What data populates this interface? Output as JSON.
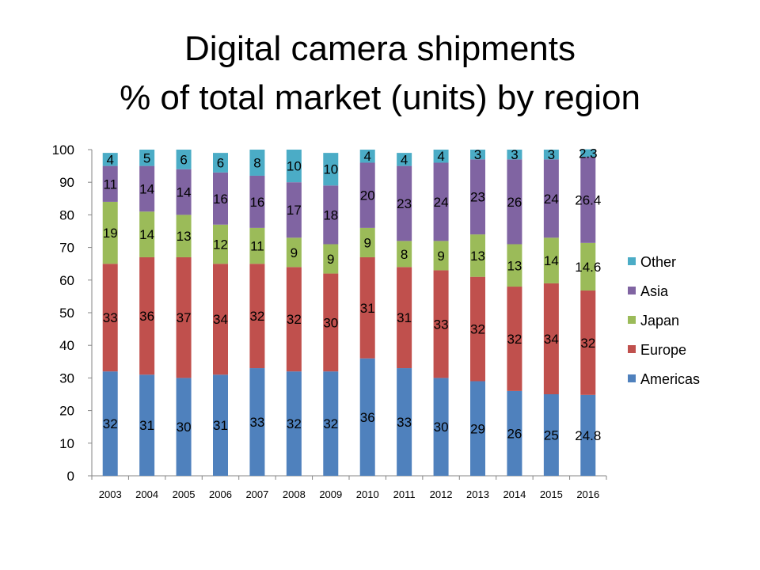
{
  "title": {
    "line1": "Digital camera shipments",
    "line2": "% of total market (units) by region"
  },
  "chart_data": {
    "type": "bar",
    "stacked": true,
    "categories": [
      "2003",
      "2004",
      "2005",
      "2006",
      "2007",
      "2008",
      "2009",
      "2010",
      "2011",
      "2012",
      "2013",
      "2014",
      "2015",
      "2016"
    ],
    "ylim": [
      0,
      100
    ],
    "yticks": [
      "0",
      "10",
      "20",
      "30",
      "40",
      "50",
      "60",
      "70",
      "80",
      "90",
      "100"
    ],
    "legend_position": "right",
    "series": [
      {
        "name": "Americas",
        "color": "#4F81BD",
        "values": [
          32,
          31,
          30,
          31,
          33,
          32,
          32,
          36,
          33,
          30,
          29,
          26,
          25,
          24.8
        ],
        "labels": [
          "32",
          "31",
          "30",
          "31",
          "33",
          "32",
          "32",
          "36",
          "33",
          "30",
          "29",
          "26",
          "25",
          "24.8"
        ]
      },
      {
        "name": "Europe",
        "color": "#C0504D",
        "values": [
          33,
          36,
          37,
          34,
          32,
          32,
          30,
          31,
          31,
          33,
          32,
          32,
          34,
          32
        ],
        "labels": [
          "33",
          "36",
          "37",
          "34",
          "32",
          "32",
          "30",
          "31",
          "31",
          "33",
          "32",
          "32",
          "34",
          "32"
        ]
      },
      {
        "name": "Japan",
        "color": "#9BBB59",
        "values": [
          19,
          14,
          13,
          12,
          11,
          9,
          9,
          9,
          8,
          9,
          13,
          13,
          14,
          14.6
        ],
        "labels": [
          "19",
          "14",
          "13",
          "12",
          "11",
          "9",
          "9",
          "9",
          "8",
          "9",
          "13",
          "13",
          "14",
          "14.6"
        ]
      },
      {
        "name": "Asia",
        "color": "#8064A2",
        "values": [
          11,
          14,
          14,
          16,
          16,
          17,
          18,
          20,
          23,
          24,
          23,
          26,
          24,
          26.4
        ],
        "labels": [
          "11",
          "14",
          "14",
          "16",
          "16",
          "17",
          "18",
          "20",
          "23",
          "24",
          "23",
          "26",
          "24",
          "26.4"
        ]
      },
      {
        "name": "Other",
        "color": "#4BACC6",
        "values": [
          4,
          5,
          6,
          6,
          8,
          10,
          10,
          4,
          4,
          4,
          3,
          3,
          3,
          2.3
        ],
        "labels": [
          "4",
          "5",
          "6",
          "6",
          "8",
          "10",
          "10",
          "4",
          "4",
          "4",
          "3",
          "3",
          "3",
          "2.3"
        ]
      }
    ]
  }
}
